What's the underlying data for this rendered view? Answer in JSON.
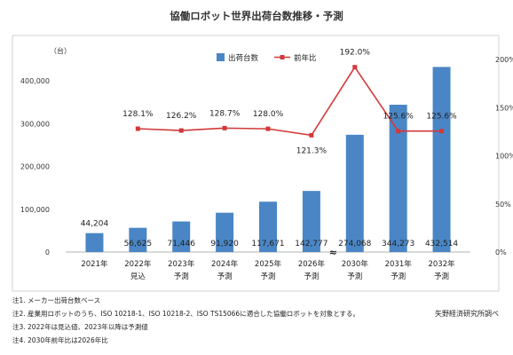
{
  "chart_data": {
    "type": "bar+line",
    "title": "協働ロボット世界出荷台数推移・予測",
    "y_unit_label": "（台）",
    "y_ticks": [
      "0",
      "100,000",
      "200,000",
      "300,000",
      "400,000"
    ],
    "y2_ticks": [
      "0%",
      "50%",
      "100%",
      "150%",
      "200%"
    ],
    "ylim": [
      0,
      450000
    ],
    "y2lim": [
      0,
      2.0
    ],
    "categories": [
      {
        "year": "2021年",
        "note": ""
      },
      {
        "year": "2022年",
        "note": "見込"
      },
      {
        "year": "2023年",
        "note": "予測"
      },
      {
        "year": "2024年",
        "note": "予測"
      },
      {
        "year": "2025年",
        "note": "予測"
      },
      {
        "year": "2026年",
        "note": "予測"
      },
      {
        "year": "2030年",
        "note": "予測"
      },
      {
        "year": "2031年",
        "note": "予測"
      },
      {
        "year": "2032年",
        "note": "予測"
      }
    ],
    "series": [
      {
        "name": "出荷台数",
        "kind": "bar",
        "color": "#4a86c5",
        "values": [
          44204,
          56625,
          71446,
          91920,
          117671,
          142777,
          274068,
          344273,
          432514
        ],
        "labels": [
          "44,204",
          "56,625",
          "71,446",
          "91,920",
          "117,671",
          "142,777",
          "274,068",
          "344,273",
          "432,514"
        ]
      },
      {
        "name": "前年比",
        "kind": "line",
        "color": "#d2393a",
        "values": [
          null,
          1.281,
          1.262,
          1.287,
          1.28,
          1.213,
          1.92,
          1.256,
          1.256
        ],
        "labels": [
          "",
          "128.1%",
          "126.2%",
          "128.7%",
          "128.0%",
          "121.3%",
          "192.0%",
          "125.6%",
          "125.6%"
        ]
      }
    ],
    "axis_break_marker": "≈",
    "legend_position": "top-center"
  },
  "notes": [
    "注1.  メーカー出荷台数ベース",
    "注2.  産業用ロボットのうち、ISO 10218-1、ISO 10218-2、ISO TS15066に適合した協働ロボットを対象とする。",
    "注3.  2022年は見込値、2023年以降は予測値",
    "注4.  2030年前年比は2026年比"
  ],
  "source": "矢野経済研究所調べ"
}
